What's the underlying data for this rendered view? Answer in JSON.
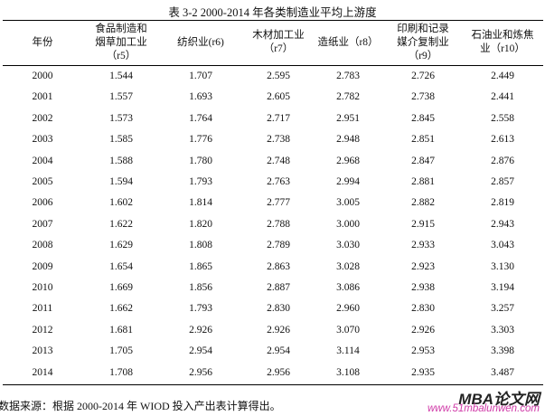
{
  "title": "表 3-2 2000-2014 年各类制造业平均上游度",
  "table": {
    "header": [
      [
        "年份"
      ],
      [
        "食品制造和",
        "烟草加工业",
        "（r5）"
      ],
      [
        "纺织业(r6)"
      ],
      [
        "木材加工业",
        "（r7）"
      ],
      [
        "造纸业（r8）"
      ],
      [
        "印刷和记录",
        "媒介复制业",
        "（r9）"
      ],
      [
        "石油业和炼焦",
        "业（r10）"
      ]
    ],
    "rows": [
      [
        "2000",
        "1.544",
        "1.707",
        "2.595",
        "2.783",
        "2.726",
        "2.449"
      ],
      [
        "2001",
        "1.557",
        "1.693",
        "2.605",
        "2.782",
        "2.738",
        "2.441"
      ],
      [
        "2002",
        "1.573",
        "1.764",
        "2.717",
        "2.951",
        "2.845",
        "2.558"
      ],
      [
        "2003",
        "1.585",
        "1.776",
        "2.738",
        "2.948",
        "2.851",
        "2.613"
      ],
      [
        "2004",
        "1.588",
        "1.780",
        "2.748",
        "2.968",
        "2.847",
        "2.876"
      ],
      [
        "2005",
        "1.594",
        "1.793",
        "2.763",
        "2.994",
        "2.881",
        "2.857"
      ],
      [
        "2006",
        "1.602",
        "1.814",
        "2.777",
        "3.005",
        "2.882",
        "2.819"
      ],
      [
        "2007",
        "1.622",
        "1.820",
        "2.788",
        "3.000",
        "2.915",
        "2.943"
      ],
      [
        "2008",
        "1.629",
        "1.808",
        "2.789",
        "3.030",
        "2.933",
        "3.043"
      ],
      [
        "2009",
        "1.654",
        "1.865",
        "2.863",
        "3.028",
        "2.923",
        "3.130"
      ],
      [
        "2010",
        "1.669",
        "1.856",
        "2.887",
        "3.086",
        "2.938",
        "3.194"
      ],
      [
        "2011",
        "1.662",
        "1.793",
        "2.830",
        "2.960",
        "2.830",
        "3.257"
      ],
      [
        "2012",
        "1.681",
        "2.926",
        "2.926",
        "3.070",
        "2.926",
        "3.303"
      ],
      [
        "2013",
        "1.705",
        "2.954",
        "2.954",
        "3.114",
        "2.953",
        "3.398"
      ],
      [
        "2014",
        "1.708",
        "2.956",
        "2.956",
        "3.108",
        "2.935",
        "3.487"
      ]
    ]
  },
  "note": "数据来源：根据 2000-2014 年 WIOD 投入产出表计算得出。",
  "watermark": {
    "brand": "MBA论文网",
    "url": "www.51mbalunwen.com"
  }
}
